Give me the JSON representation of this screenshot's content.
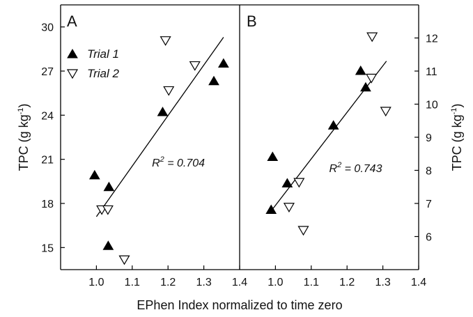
{
  "chart_data": [
    {
      "panel": "A",
      "type": "scatter",
      "xlim": [
        0.9,
        1.4
      ],
      "ylim": [
        13.5,
        31.5
      ],
      "xticks": [
        "1.0",
        "1.1",
        "1.2",
        "1.3",
        "1.4"
      ],
      "yticks": [
        "15",
        "18",
        "21",
        "24",
        "27",
        "30"
      ],
      "y_axis_side": "left",
      "series": [
        {
          "name": "Trial 1",
          "marker": "filled-up-triangle",
          "points": [
            [
              0.995,
              19.9
            ],
            [
              1.035,
              19.1
            ],
            [
              1.033,
              15.1
            ],
            [
              1.185,
              24.2
            ],
            [
              1.328,
              26.3
            ],
            [
              1.355,
              27.5
            ]
          ]
        },
        {
          "name": "Trial 2",
          "marker": "open-down-triangle",
          "points": [
            [
              1.015,
              17.6
            ],
            [
              1.032,
              17.6
            ],
            [
              1.078,
              14.2
            ],
            [
              1.193,
              29.1
            ],
            [
              1.202,
              25.7
            ],
            [
              1.275,
              27.4
            ]
          ]
        }
      ],
      "fit_line": {
        "x": [
          1.0,
          1.355
        ],
        "y": [
          17.1,
          29.3
        ]
      },
      "annotation": {
        "base": "R",
        "sup": "2",
        "text": " = 0.704",
        "x": 1.155,
        "y": 20.5
      }
    },
    {
      "panel": "B",
      "type": "scatter",
      "xlim": [
        0.9,
        1.4
      ],
      "ylim": [
        5.0,
        13.0
      ],
      "xticks": [
        "1.0",
        "1.1",
        "1.2",
        "1.3",
        "1.4"
      ],
      "yticks": [
        "6",
        "7",
        "8",
        "9",
        "10",
        "11",
        "12"
      ],
      "y_axis_side": "right",
      "series": [
        {
          "name": "Trial 1",
          "marker": "filled-up-triangle",
          "points": [
            [
              0.988,
              6.8
            ],
            [
              0.992,
              8.4
            ],
            [
              1.033,
              7.6
            ],
            [
              1.162,
              9.35
            ],
            [
              1.238,
              11.0
            ],
            [
              1.252,
              10.5
            ]
          ]
        },
        {
          "name": "Trial 2",
          "marker": "open-down-triangle",
          "points": [
            [
              1.038,
              6.9
            ],
            [
              1.066,
              7.65
            ],
            [
              1.078,
              6.2
            ],
            [
              1.268,
              10.8
            ],
            [
              1.27,
              12.05
            ],
            [
              1.308,
              9.8
            ]
          ]
        }
      ],
      "fit_line": {
        "x": [
          0.99,
          1.31
        ],
        "y": [
          6.8,
          11.3
        ]
      },
      "annotation": {
        "base": "R",
        "sup": "2",
        "text": " = 0.743",
        "x": 1.15,
        "y": 7.95
      }
    }
  ],
  "labels": {
    "panel_a": "A",
    "panel_b": "B",
    "x_axis_title": "EPhen Index normalized to time zero",
    "y_left_title_base": "TPC (g kg",
    "y_left_title_sup": "-1",
    "y_left_title_end": ")",
    "y_right_title_base": "TPC (g kg",
    "y_right_title_sup": "-1",
    "y_right_title_end": ")"
  },
  "legend": {
    "placement": "panel A, top-left",
    "items": [
      {
        "label": "Trial 1",
        "marker": "filled-up-triangle"
      },
      {
        "label": "Trial 2",
        "marker": "open-down-triangle"
      }
    ]
  },
  "colors": {
    "marker": "#000000",
    "line": "#000000",
    "axis": "#000000",
    "background": "#ffffff"
  }
}
